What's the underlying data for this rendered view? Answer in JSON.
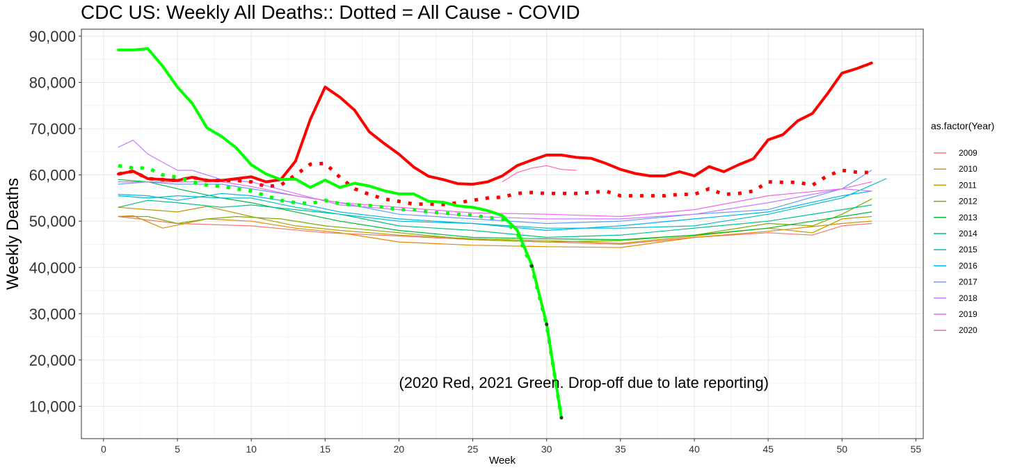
{
  "chart_data": {
    "type": "line",
    "title": "CDC US: Weekly All Deaths:: Dotted = All Cause - COVID",
    "xlabel": "Week",
    "ylabel": "Weekly Deaths",
    "xlim": [
      -1.5,
      55.5
    ],
    "ylim": [
      3000,
      91500
    ],
    "x_ticks": [
      0,
      5,
      10,
      15,
      20,
      25,
      30,
      35,
      40,
      45,
      50,
      55
    ],
    "y_ticks": [
      10000,
      20000,
      30000,
      40000,
      50000,
      60000,
      70000,
      80000,
      90000
    ],
    "y_tick_labels": [
      "10,000",
      "20,000",
      "30,000",
      "40,000",
      "50,000",
      "60,000",
      "70,000",
      "80,000",
      "90,000"
    ],
    "grid": true,
    "legend_position": "right",
    "legend_title": "as.factor(Year)",
    "annotation": "(2020 Red, 2021 Green. Drop-off due to late reporting)",
    "legend": [
      {
        "label": "2009",
        "color": "#F8766D"
      },
      {
        "label": "2010",
        "color": "#DE8C00"
      },
      {
        "label": "2011",
        "color": "#B79F00"
      },
      {
        "label": "2012",
        "color": "#7CAE00"
      },
      {
        "label": "2013",
        "color": "#00BA38"
      },
      {
        "label": "2014",
        "color": "#00C08B"
      },
      {
        "label": "2015",
        "color": "#00BFC4"
      },
      {
        "label": "2016",
        "color": "#00B4F0"
      },
      {
        "label": "2017",
        "color": "#619CFF"
      },
      {
        "label": "2018",
        "color": "#C77CFF"
      },
      {
        "label": "2019",
        "color": "#F564E3"
      },
      {
        "label": "2020",
        "color": "#FF64B0"
      }
    ],
    "series": [
      {
        "name": "2009",
        "color": "#F8766D",
        "width": 1.2,
        "style": "solid",
        "x": [
          1,
          5,
          10,
          15,
          20,
          25,
          30,
          35,
          40,
          45,
          48,
          50,
          52
        ],
        "y": [
          51000,
          49500,
          49000,
          47500,
          46800,
          46000,
          45500,
          45000,
          46500,
          47500,
          47000,
          49000,
          49500
        ]
      },
      {
        "name": "2010",
        "color": "#DE8C00",
        "width": 1.2,
        "style": "solid",
        "x": [
          1,
          2,
          4,
          7,
          10,
          13,
          16,
          20,
          25,
          30,
          35,
          40,
          45,
          50,
          52
        ],
        "y": [
          51000,
          51200,
          48500,
          50500,
          50000,
          48500,
          47500,
          45500,
          44800,
          44500,
          44300,
          46500,
          47800,
          49500,
          50000
        ]
      },
      {
        "name": "2011",
        "color": "#B79F00",
        "width": 1.2,
        "style": "solid",
        "x": [
          1,
          3,
          5,
          7,
          10,
          13,
          16,
          20,
          25,
          30,
          35,
          40,
          45,
          48,
          50,
          52
        ],
        "y": [
          53000,
          52500,
          52000,
          53200,
          51000,
          49000,
          48000,
          47000,
          46200,
          45800,
          45200,
          46800,
          48500,
          47500,
          50500,
          51000
        ]
      },
      {
        "name": "2012",
        "color": "#7CAE00",
        "width": 1.2,
        "style": "solid",
        "x": [
          1,
          3,
          5,
          7,
          9,
          12,
          15,
          20,
          25,
          30,
          35,
          40,
          45,
          48,
          50,
          52
        ],
        "y": [
          51000,
          51000,
          49500,
          50500,
          51000,
          50500,
          49000,
          47500,
          46000,
          45500,
          45800,
          47000,
          49500,
          49000,
          51500,
          54800
        ]
      },
      {
        "name": "2013",
        "color": "#00BA38",
        "width": 1.2,
        "style": "solid",
        "x": [
          1,
          3,
          5,
          8,
          10,
          13,
          16,
          20,
          25,
          30,
          35,
          40,
          45,
          50,
          52
        ],
        "y": [
          59000,
          58500,
          57000,
          55000,
          54000,
          52000,
          50000,
          48000,
          46500,
          46200,
          46000,
          47000,
          48500,
          51000,
          52000
        ]
      },
      {
        "name": "2014",
        "color": "#00C08B",
        "width": 1.2,
        "style": "solid",
        "x": [
          1,
          3,
          5,
          8,
          10,
          13,
          16,
          20,
          25,
          30,
          35,
          40,
          45,
          50,
          52
        ],
        "y": [
          53000,
          54500,
          54000,
          53000,
          53500,
          52500,
          51500,
          49000,
          48000,
          46500,
          47000,
          48500,
          50000,
          52500,
          53500
        ]
      },
      {
        "name": "2015",
        "color": "#00BFC4",
        "width": 1.2,
        "style": "solid",
        "x": [
          1,
          3,
          5,
          8,
          10,
          13,
          16,
          20,
          25,
          30,
          35,
          40,
          45,
          50,
          53
        ],
        "y": [
          55500,
          55000,
          55500,
          55000,
          55000,
          53000,
          51500,
          50000,
          49500,
          48500,
          48500,
          49000,
          51500,
          55000,
          59200
        ]
      },
      {
        "name": "2016",
        "color": "#00B4F0",
        "width": 1.2,
        "style": "solid",
        "x": [
          1,
          3,
          5,
          8,
          10,
          13,
          16,
          20,
          25,
          30,
          35,
          40,
          45,
          50,
          52
        ],
        "y": [
          55800,
          55500,
          54500,
          56000,
          55500,
          54000,
          52000,
          50500,
          49500,
          48000,
          49000,
          50500,
          52000,
          55500,
          56500
        ]
      },
      {
        "name": "2017",
        "color": "#619CFF",
        "width": 1.2,
        "style": "solid",
        "x": [
          1,
          3,
          5,
          8,
          10,
          13,
          16,
          20,
          25,
          30,
          35,
          40,
          45,
          50,
          52
        ],
        "y": [
          58000,
          58500,
          58000,
          58000,
          57000,
          55500,
          54000,
          51500,
          50500,
          49500,
          50000,
          51500,
          52500,
          57000,
          61000
        ]
      },
      {
        "name": "2018",
        "color": "#C77CFF",
        "width": 1.2,
        "style": "solid",
        "x": [
          1,
          2,
          3,
          5,
          6,
          8,
          10,
          13,
          16,
          20,
          25,
          30,
          35,
          40,
          45,
          50,
          52
        ],
        "y": [
          66000,
          67500,
          64500,
          61000,
          61000,
          59000,
          58500,
          56000,
          53500,
          52500,
          51000,
          50500,
          50500,
          51500,
          54000,
          57000,
          56500
        ]
      },
      {
        "name": "2019",
        "color": "#F564E3",
        "width": 1.2,
        "style": "solid",
        "x": [
          1,
          3,
          5,
          8,
          10,
          13,
          16,
          20,
          25,
          30,
          35,
          40,
          45,
          50,
          52
        ],
        "y": [
          58500,
          58500,
          58500,
          58500,
          57500,
          55500,
          54000,
          53000,
          51800,
          51500,
          51000,
          52500,
          55500,
          57000,
          58500
        ]
      },
      {
        "name": "2020",
        "color": "#FF64B0",
        "width": 1.2,
        "style": "solid",
        "x": [
          27,
          28,
          29,
          30,
          31,
          32
        ],
        "y": [
          58500,
          60500,
          61500,
          62000,
          61200,
          61000
        ]
      },
      {
        "name": "2020 all causes",
        "color": "#FF0000",
        "width": 4,
        "style": "solid",
        "x": [
          1,
          2,
          3,
          4,
          5,
          6,
          7,
          8,
          9,
          10,
          11,
          12,
          13,
          14,
          15,
          16,
          17,
          18,
          19,
          20,
          21,
          22,
          23,
          24,
          25,
          26,
          27,
          28,
          29,
          30,
          31,
          32,
          33,
          34,
          35,
          36,
          37,
          38,
          39,
          40,
          41,
          42,
          43,
          44,
          45,
          46,
          47,
          48,
          49,
          50,
          51,
          52
        ],
        "y": [
          60200,
          60800,
          59200,
          59000,
          58800,
          59500,
          58800,
          58800,
          59200,
          59600,
          58500,
          59000,
          63000,
          72000,
          79000,
          76800,
          74000,
          69300,
          66800,
          64500,
          61700,
          59700,
          59000,
          58100,
          58000,
          58500,
          59800,
          62000,
          63200,
          64300,
          64300,
          63800,
          63600,
          62500,
          61200,
          60300,
          59800,
          59800,
          60700,
          59800,
          61800,
          60700,
          62200,
          63500,
          67600,
          68700,
          71700,
          73300,
          77500,
          82000,
          83000,
          84200
        ]
      },
      {
        "name": "2020 all causes minus COVID",
        "color": "#FF0000",
        "width": 5,
        "style": "dotted",
        "x": [
          1,
          2,
          3,
          4,
          5,
          6,
          7,
          8,
          9,
          10,
          11,
          12,
          13,
          14,
          15,
          16,
          17,
          18,
          19,
          20,
          21,
          22,
          23,
          24,
          25,
          26,
          27,
          28,
          29,
          30,
          31,
          32,
          33,
          34,
          35,
          36,
          37,
          38,
          39,
          40,
          41,
          42,
          43,
          44,
          45,
          46,
          47,
          48,
          49,
          50,
          51,
          52
        ],
        "y": [
          60200,
          60800,
          59200,
          59000,
          58800,
          59500,
          58800,
          58800,
          58800,
          58500,
          57500,
          57800,
          60000,
          62300,
          62500,
          59500,
          57000,
          55800,
          54800,
          54300,
          53700,
          53700,
          53600,
          54000,
          54500,
          55000,
          55200,
          56000,
          56200,
          56000,
          56000,
          56000,
          56200,
          56500,
          55500,
          55500,
          55500,
          55500,
          55800,
          55800,
          57000,
          55800,
          56000,
          56500,
          58500,
          58400,
          58400,
          57800,
          59800,
          61000,
          60600,
          60500
        ]
      },
      {
        "name": "2021 all causes",
        "color": "#00FF00",
        "width": 4,
        "style": "solid",
        "x": [
          1,
          2,
          3,
          4,
          5,
          6,
          7,
          8,
          9,
          10,
          11,
          12,
          13,
          14,
          15,
          16,
          17,
          18,
          19,
          20,
          21,
          22,
          23,
          24,
          25,
          26,
          27,
          28,
          29,
          30,
          31
        ],
        "y": [
          87000,
          87000,
          87300,
          83500,
          79000,
          75500,
          70200,
          68300,
          65800,
          62200,
          60200,
          59000,
          59100,
          57300,
          58900,
          57300,
          58200,
          57600,
          56600,
          55900,
          55900,
          54300,
          54100,
          53300,
          53000,
          52300,
          51200,
          48100,
          40500,
          27800,
          7500
        ]
      },
      {
        "name": "2021 all causes minus COVID",
        "color": "#00FF00",
        "width": 5,
        "style": "dotted",
        "x": [
          1,
          2,
          3,
          4,
          5,
          6,
          7,
          8,
          9,
          10,
          11,
          12,
          13,
          14,
          15,
          16,
          17,
          18,
          19,
          20,
          21,
          22,
          23,
          24,
          25,
          26,
          27,
          28,
          29,
          30,
          31
        ],
        "y": [
          62000,
          61500,
          61500,
          60000,
          59500,
          58500,
          57800,
          57500,
          57000,
          56500,
          55500,
          54500,
          54000,
          53800,
          54500,
          53800,
          53500,
          53400,
          53000,
          52500,
          52500,
          52000,
          51800,
          51500,
          51300,
          50800,
          50500,
          47500,
          40000,
          27500,
          7500
        ]
      }
    ]
  }
}
